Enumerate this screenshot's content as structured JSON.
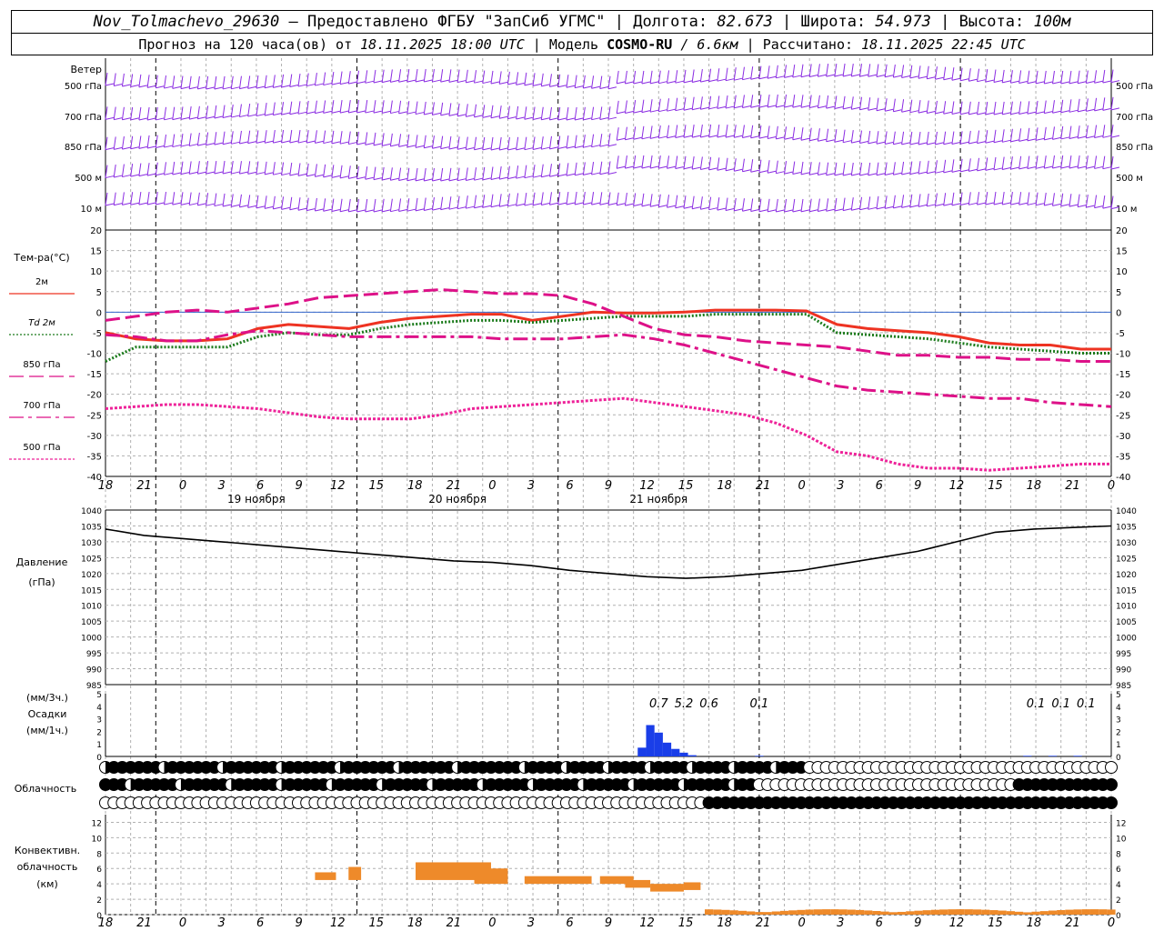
{
  "header": {
    "station": "Nov_Tolmachevo_29630",
    "provided": "– Предоставлено ФГБУ \"ЗапСиб УГМС\"",
    "lon_label": "Долгота:",
    "lon": "82.673",
    "lat_label": "Широта:",
    "lat": "54.973",
    "alt_label": "Высота:",
    "alt": "100м",
    "forecast_prefix": "Прогноз на 120 часа(ов) от",
    "forecast_time": "18.11.2025 18:00 UTC",
    "model_label": "Модель",
    "model_name": "COSMO-RU",
    "model_res": "/ 6.6км",
    "calc_label": "Рассчитано:",
    "calc_time": "18.11.2025 22:45 UTC"
  },
  "chart_data": {
    "type": "line",
    "time_axis": {
      "hour_ticks": [
        "18",
        "21",
        "0",
        "3",
        "6",
        "9",
        "12",
        "15",
        "18",
        "21",
        "0",
        "3",
        "6",
        "9",
        "12",
        "15",
        "18",
        "21",
        "0",
        "3",
        "6",
        "9",
        "12",
        "15",
        "18",
        "21",
        "0"
      ],
      "day_labels": [
        "19 ноября",
        "20 ноября",
        "21 ноября"
      ]
    },
    "wind": {
      "title": "Ветер",
      "levels": [
        "500 гПа",
        "700 гПа",
        "850 гПа",
        "500 м",
        "10 м"
      ]
    },
    "temperature": {
      "title": "Тем-ра(°C)",
      "ylim": [
        -40,
        20
      ],
      "y_ticks": [
        "20",
        "15",
        "10",
        "5",
        "0",
        "-5",
        "-10",
        "-15",
        "-20",
        "-25",
        "-30",
        "-35",
        "-40"
      ],
      "series": [
        {
          "name": "2м",
          "color": "#ee3322",
          "style": "solid",
          "values": [
            -5,
            -6.5,
            -7,
            -7,
            -6.5,
            -4,
            -3,
            -3.5,
            -4,
            -2.5,
            -1.5,
            -1,
            -0.5,
            -0.5,
            -2,
            -1,
            0,
            -0.2,
            -0.2,
            0,
            0.5,
            0.5,
            0.5,
            0.3,
            -3,
            -4,
            -4.5,
            -5,
            -6,
            -7.5,
            -8,
            -8,
            -9,
            -9
          ]
        },
        {
          "name": "Td 2м",
          "color": "#1a7a1a",
          "style": "dots",
          "values": [
            -12,
            -8.5,
            -8.5,
            -8.5,
            -8.5,
            -6,
            -5,
            -5.5,
            -5.5,
            -4,
            -3,
            -2.5,
            -2,
            -2,
            -2.5,
            -2,
            -1.5,
            -1,
            -1,
            -1,
            -0.5,
            -0.5,
            -0.5,
            -0.5,
            -5,
            -5.5,
            -6,
            -6.5,
            -7.5,
            -8.5,
            -9,
            -9.5,
            -10,
            -10
          ]
        },
        {
          "name": "850 гПа",
          "color": "#dd1188",
          "style": "dash",
          "values": [
            -2,
            -1,
            0,
            0.5,
            0,
            1,
            2,
            3.5,
            4,
            4.5,
            5,
            5.5,
            5,
            4.5,
            4.5,
            4,
            2,
            -1,
            -4,
            -5.5,
            -6,
            -7,
            -7.5,
            -8,
            -8.5,
            -9.5,
            -10.5,
            -10.5,
            -11,
            -11,
            -11.5,
            -11.5,
            -12,
            -12
          ]
        },
        {
          "name": "700 гПа",
          "color": "#dd1188",
          "style": "dashdot",
          "values": [
            -5.5,
            -6,
            -7,
            -7,
            -5.5,
            -4.5,
            -5,
            -5.5,
            -6,
            -6,
            -6,
            -6,
            -6,
            -6.5,
            -6.5,
            -6.5,
            -6,
            -5.5,
            -6.5,
            -8,
            -10,
            -12,
            -14,
            -16,
            -18,
            -19,
            -19.5,
            -20,
            -20.5,
            -21,
            -21,
            -22,
            -22.5,
            -23
          ]
        },
        {
          "name": "500 гПа",
          "color": "#ee2299",
          "style": "dotted",
          "values": [
            -23.5,
            -23,
            -22.5,
            -22.5,
            -23,
            -23.5,
            -24.5,
            -25.5,
            -26,
            -26,
            -26,
            -25,
            -23.5,
            -23,
            -22.5,
            -22,
            -21.5,
            -21,
            -22,
            -23,
            -24,
            -25,
            -27,
            -30,
            -34,
            -35,
            -37,
            -38,
            -38,
            -38.5,
            -38,
            -37.5,
            -37,
            -37
          ]
        }
      ]
    },
    "pressure": {
      "title": "Давление",
      "unit": "(гПа)",
      "ylim": [
        985,
        1040
      ],
      "y_ticks": [
        "1040",
        "1035",
        "1030",
        "1025",
        "1020",
        "1015",
        "1010",
        "1005",
        "1000",
        "995",
        "990",
        "985"
      ],
      "values": [
        1034,
        1032,
        1031,
        1030,
        1029,
        1028,
        1027,
        1026,
        1025,
        1024,
        1023.5,
        1022.5,
        1021,
        1020,
        1019,
        1018.5,
        1019,
        1020,
        1021,
        1023,
        1025,
        1027,
        1030,
        1033,
        1034,
        1034.5,
        1035
      ]
    },
    "precipitation": {
      "title": "Осадки",
      "unit_3h": "(мм/3ч.)",
      "unit_1h": "(мм/1ч.)",
      "y_ticks": [
        "5",
        "4",
        "3",
        "2",
        "1",
        "0"
      ],
      "labels": [
        {
          "hour": 66,
          "text": "0.7"
        },
        {
          "hour": 69,
          "text": "5.2"
        },
        {
          "hour": 72,
          "text": "0.6"
        },
        {
          "hour": 78,
          "text": "0.1"
        },
        {
          "hour": 111,
          "text": "0.1"
        },
        {
          "hour": 114,
          "text": "0.1"
        },
        {
          "hour": 117,
          "text": "0.1"
        }
      ],
      "bars_mm_per_1h": [
        [
          64,
          0.7
        ],
        [
          65,
          2.5
        ],
        [
          66,
          1.9
        ],
        [
          67,
          1.1
        ],
        [
          68,
          0.6
        ],
        [
          69,
          0.3
        ],
        [
          70,
          0.1
        ],
        [
          78,
          0.05
        ],
        [
          110,
          0.05
        ],
        [
          113,
          0.05
        ],
        [
          116,
          0.05
        ]
      ]
    },
    "cloudiness": {
      "title": "Облачность"
    },
    "convective": {
      "title": "Конвективн.",
      "title2": "облачность",
      "unit": "(км)",
      "y_ticks": [
        "12",
        "10",
        "8",
        "6",
        "4",
        "2",
        "0"
      ]
    }
  }
}
